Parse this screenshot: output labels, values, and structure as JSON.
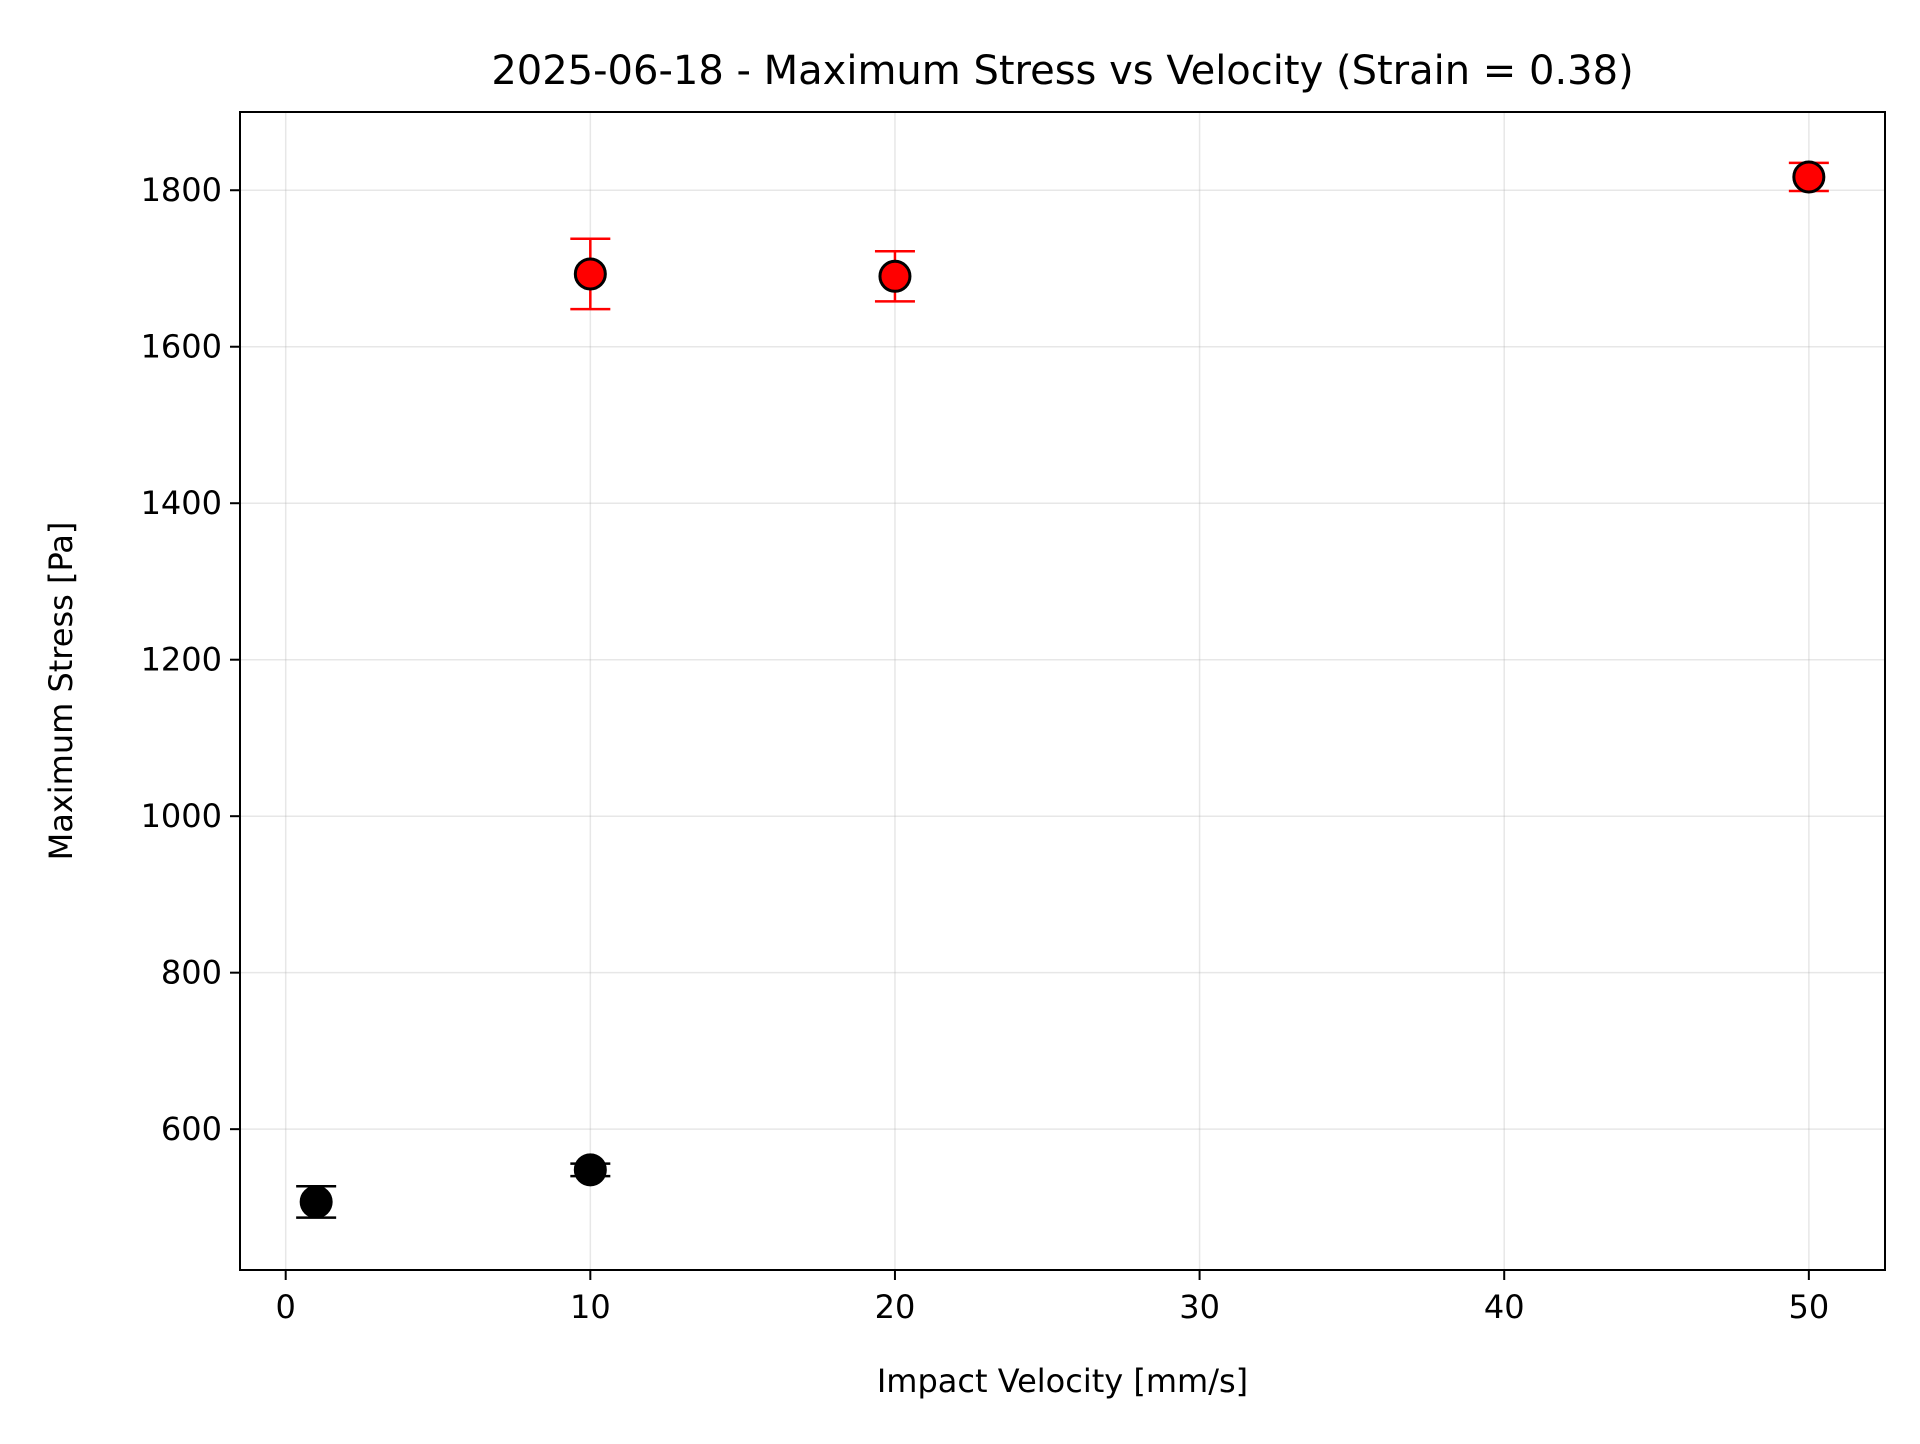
{
  "chart_data": {
    "type": "scatter",
    "title": "2025-06-18 - Maximum Stress vs Velocity (Strain = 0.38)",
    "xlabel": "Impact Velocity [mm/s]",
    "ylabel": "Maximum Stress [Pa]",
    "xlim": [
      -1.5,
      52.5
    ],
    "ylim": [
      420,
      1900
    ],
    "xticks": [
      0,
      10,
      20,
      30,
      40,
      50
    ],
    "yticks": [
      600,
      800,
      1000,
      1200,
      1400,
      1600,
      1800
    ],
    "grid": true,
    "series": [
      {
        "color": "#000000",
        "errorbar_color": "#000000",
        "points": [
          {
            "x": 1,
            "y": 507,
            "err": 20
          },
          {
            "x": 10,
            "y": 548,
            "err": 8
          }
        ]
      },
      {
        "color": "#ff0000",
        "errorbar_color": "#ff0000",
        "points": [
          {
            "x": 10,
            "y": 1693,
            "err": 45
          },
          {
            "x": 20,
            "y": 1690,
            "err": 32
          },
          {
            "x": 50,
            "y": 1817,
            "err": 18
          }
        ]
      }
    ]
  }
}
